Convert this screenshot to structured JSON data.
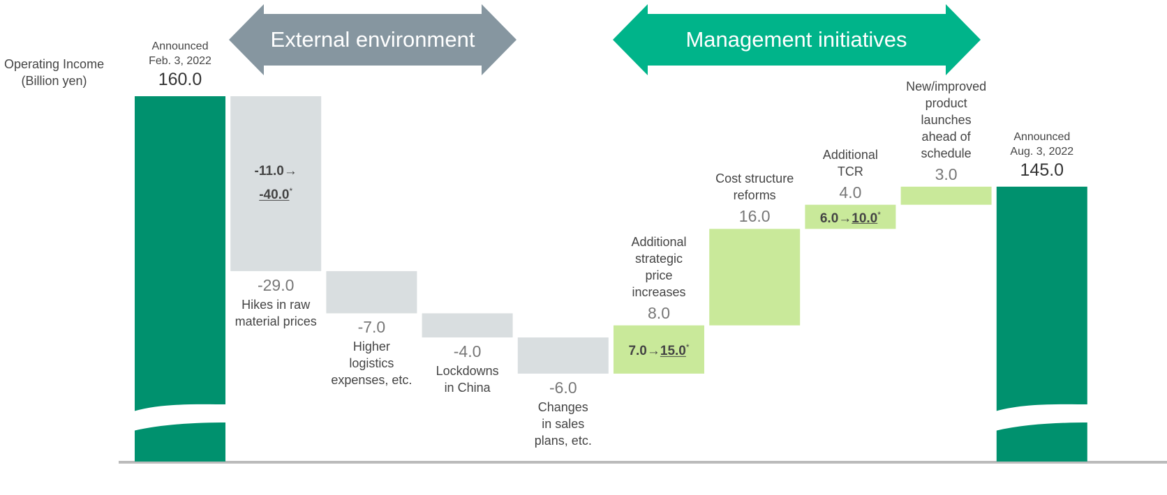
{
  "chart_data": {
    "type": "waterfall",
    "y_label": "Operating Income\n (Billion yen)",
    "groups": [
      "External environment",
      "Management initiatives"
    ],
    "categories": [
      "Announced\nFeb. 3, 2022",
      "Hikes in raw\nmaterial prices",
      "Higher\nlogistics\nexpenses, etc.",
      "Lockdowns\nin China",
      "Changes\nin sales\nplans, etc.",
      "Additional\nstrategic\nprice\nincreases",
      "Cost structure\nreforms",
      "Additional\nTCR",
      "New/improved\nproduct\nlaunches\nahead of\nschedule",
      "Announced\nAug. 3, 2022"
    ],
    "measure": [
      "absolute",
      "relative",
      "relative",
      "relative",
      "relative",
      "relative",
      "relative",
      "relative",
      "relative",
      "total"
    ],
    "values": [
      160,
      -29,
      -7,
      -4,
      -6,
      8,
      16,
      4,
      3,
      145
    ],
    "value_labels": [
      "160.0",
      "-29.0",
      "-7.0",
      "-4.0",
      "-6.0",
      "8.0",
      "16.0",
      "4.0",
      "3.0",
      "145.0"
    ],
    "annotations": [
      null,
      {
        "before": "-11.0→",
        "after": "-40.0",
        "mark": "*"
      },
      null,
      null,
      null,
      {
        "before": "7.0→",
        "after": "15.0",
        "mark": "*"
      },
      null,
      {
        "before": "6.0→",
        "after": "10.0",
        "mark": "*"
      },
      null,
      null
    ],
    "colors": {
      "total": "#00916e",
      "decrease": "#d9dee0",
      "increase": "#c9e99a",
      "group_external": "#8696a0",
      "group_management": "#00b48a"
    },
    "ylim": [
      100,
      160
    ]
  }
}
